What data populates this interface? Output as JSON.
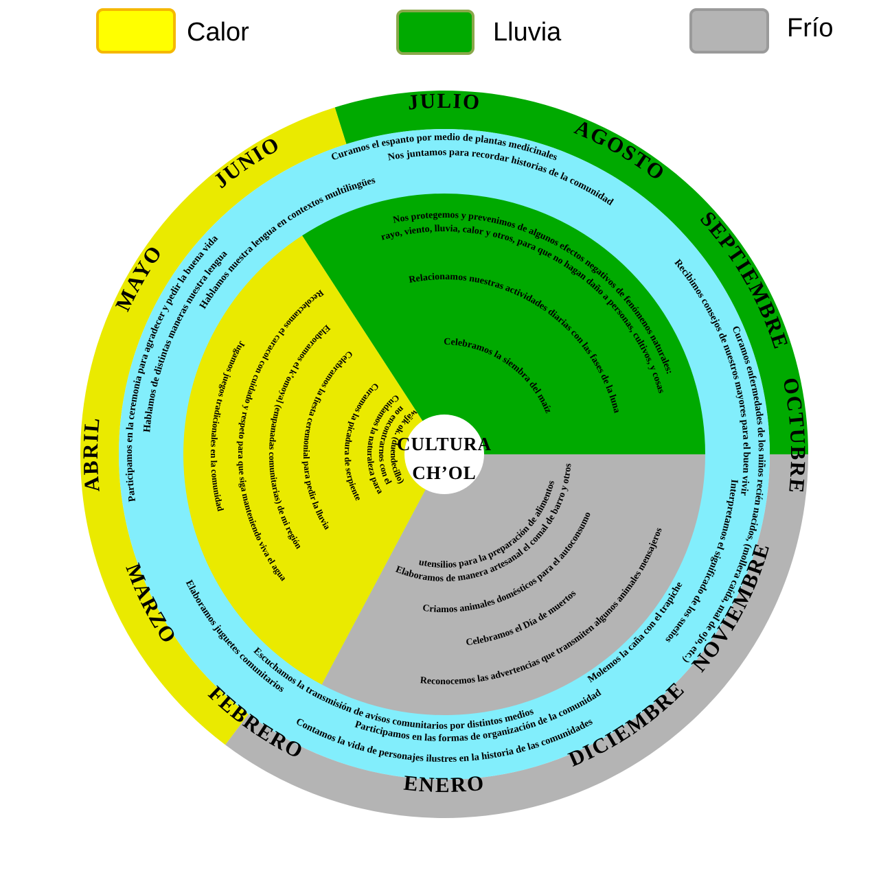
{
  "colors": {
    "calor": "#eaea00",
    "lluvia": "#00aa00",
    "frio": "#b4b4b4",
    "ring": "#82eefc"
  },
  "legend": [
    {
      "label": "Calor",
      "color": "#ffff00",
      "border": "#f5b800"
    },
    {
      "label": "Lluvia",
      "color": "#00aa00",
      "border": "#8aa84a"
    },
    {
      "label": "Frío",
      "color": "#b4b4b4",
      "border": "#9a9a9a"
    }
  ],
  "center": {
    "line1": "CULTURA",
    "line2": "CH’OL"
  },
  "months": [
    {
      "name": "JULIO",
      "season": "lluvia"
    },
    {
      "name": "AGOSTO",
      "season": "lluvia"
    },
    {
      "name": "SEPTIEMBRE",
      "season": "lluvia"
    },
    {
      "name": "OCTUBRE",
      "season": "lluvia"
    },
    {
      "name": "NOVIEMBRE",
      "season": "frio"
    },
    {
      "name": "DICIEMBRE",
      "season": "frio"
    },
    {
      "name": "ENERO",
      "season": "frio"
    },
    {
      "name": "FEBRERO",
      "season": "calor"
    },
    {
      "name": "MARZO",
      "season": "calor"
    },
    {
      "name": "ABRIL",
      "season": "calor"
    },
    {
      "name": "MAYO",
      "season": "calor"
    },
    {
      "name": "JUNIO",
      "season": "calor"
    }
  ],
  "outer_ring_activities": [
    "Curamos el espanto por medio de plantas medicinales",
    "Nos juntamos para recordar historias de la comunidad",
    "Recibimos consejos de nuestros mayores para el buen vivir",
    "Curamos enfermedades de los niños recién nacidos, (mollera caída, mal de ojo, etc.)",
    "Interpretamos el significado de los sueños",
    "Molemos la caña con el trapiche",
    "Participamos en las formas de organización de la comunidad",
    "Contamos la vida de personajes ilustres en la historia de las comunidades",
    "Escuchamos la transmisión de avisos comunitarios por distintos medios",
    "Elaboramos juguetes comunitarios",
    "Participamos en la ceremonia para agradecer y pedir la buena vida",
    "Hablamos de distintas maneras nuestra lengua",
    "Hablamos nuestra lengua en contextos multilingües"
  ],
  "lluvia_activities": [
    "Nos protegemos y prevenimos de algunos efectos negativos de fenómenos naturales:",
    "rayo, viento, lluvia, calor y otros, para que no hagan daño a personas, cultivos, y cosas",
    "Relacionamos nuestras actividades diarias con las fases de la luna",
    "Celebramos la siembra del maíz"
  ],
  "frio_activities": [
    "Reconocemos las advertencias que transmiten algunos animales mensajeros",
    "Celebramos el Día de muertos",
    "Criamos animales domésticos para el autoconsumo",
    "Elaboramos de manera artesanal el comal de barro y otros",
    "utensilios para la preparación de alimentos"
  ],
  "calor_activities": [
    "Jugamos juegos tradicionales en la comunidad",
    "Recolectamos el caracol con cuidado y respeto para que siga manteniendo viva el agua",
    "Elaboramos el k’omoya] (empanadas comunitarias) de mi región",
    "Celebramos la fiesta ceremonial para pedir la lluvia",
    "Curamos la picadura de serpiente",
    "Cuidamos la naturaleza para",
    "no encontrarnos con el",
    "wäjk ok. (duendecillo)"
  ]
}
